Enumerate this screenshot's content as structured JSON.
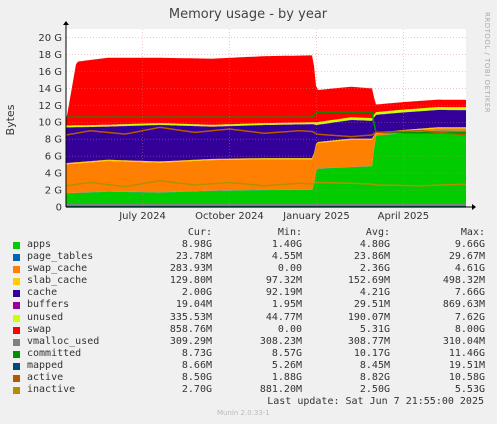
{
  "chart_data": {
    "type": "area",
    "title": "Memory usage - by year",
    "ylabel": "Bytes",
    "ylim": [
      0,
      21
    ],
    "yunit": "G",
    "yticks": [
      "0",
      "2 G",
      "4 G",
      "6 G",
      "8 G",
      "10 G",
      "12 G",
      "14 G",
      "16 G",
      "18 G",
      "20 G"
    ],
    "xticks": [
      "July 2024",
      "October 2024",
      "January 2025",
      "April 2025"
    ],
    "xtick_positions": [
      2024.5,
      2024.75,
      2025.0,
      2025.25
    ],
    "xlim": [
      2024.28,
      2025.43
    ],
    "side_label": "RRDTOOL / TOBI OETIKER",
    "series": [
      {
        "name": "apps",
        "color": "#00cc00",
        "x": [
          2024.28,
          2024.4,
          2024.55,
          2024.7,
          2024.85,
          2024.99,
          2025.0,
          2025.1,
          2025.16,
          2025.17,
          2025.25,
          2025.35,
          2025.43
        ],
        "values": [
          1.6,
          1.8,
          1.7,
          1.9,
          2.0,
          2.0,
          4.5,
          4.7,
          4.8,
          8.4,
          8.7,
          9.0,
          8.98
        ]
      },
      {
        "name": "page_tables",
        "color": "#0066b3",
        "x": [
          2024.28,
          2025.43
        ],
        "values": [
          0.03,
          0.03
        ]
      },
      {
        "name": "swap_cache",
        "color": "#ff8000",
        "x": [
          2024.28,
          2024.4,
          2024.55,
          2024.7,
          2024.85,
          2024.99,
          2025.0,
          2025.1,
          2025.16,
          2025.17,
          2025.43
        ],
        "values": [
          3.4,
          3.6,
          3.5,
          3.6,
          3.6,
          3.6,
          3.0,
          3.2,
          3.1,
          0.2,
          0.28
        ]
      },
      {
        "name": "slab_cache",
        "color": "#ffcc00",
        "x": [
          2024.28,
          2025.43
        ],
        "values": [
          0.15,
          0.13
        ]
      },
      {
        "name": "cache",
        "color": "#330099",
        "x": [
          2024.28,
          2024.4,
          2024.55,
          2024.7,
          2024.85,
          2024.99,
          2025.0,
          2025.1,
          2025.16,
          2025.17,
          2025.43
        ],
        "values": [
          4.2,
          3.9,
          4.3,
          3.8,
          3.9,
          4.0,
          2.0,
          2.2,
          2.1,
          2.1,
          2.0
        ]
      },
      {
        "name": "buffers",
        "color": "#990099",
        "x": [
          2024.28,
          2025.43
        ],
        "values": [
          0.03,
          0.02
        ]
      },
      {
        "name": "unused",
        "color": "#ccff00",
        "x": [
          2024.28,
          2024.99,
          2025.0,
          2025.16,
          2025.17,
          2025.43
        ],
        "values": [
          0.2,
          0.2,
          0.3,
          0.3,
          0.3,
          0.34
        ]
      },
      {
        "name": "swap",
        "color": "#ff0000",
        "x": [
          2024.28,
          2024.31,
          2024.4,
          2024.55,
          2024.7,
          2024.85,
          2024.99,
          2025.0,
          2025.1,
          2025.16,
          2025.17,
          2025.43
        ],
        "values": [
          0.5,
          7.5,
          7.9,
          7.7,
          7.8,
          7.9,
          7.9,
          3.8,
          3.6,
          3.5,
          0.9,
          0.86
        ]
      }
    ],
    "lines": [
      {
        "name": "vmalloc_used",
        "color": "#808080",
        "x": [
          2024.28,
          2025.43
        ],
        "values": [
          0.31,
          0.31
        ]
      },
      {
        "name": "committed",
        "color": "#008f00",
        "x": [
          2024.28,
          2024.99,
          2025.0,
          2025.16,
          2025.17,
          2025.43
        ],
        "values": [
          10.6,
          10.6,
          11.2,
          11.2,
          8.8,
          8.73
        ]
      },
      {
        "name": "mapped",
        "color": "#00487d",
        "x": [
          2024.28,
          2025.43
        ],
        "values": [
          0.009,
          0.009
        ]
      },
      {
        "name": "active",
        "color": "#b35a00",
        "x": [
          2024.28,
          2024.35,
          2024.45,
          2024.55,
          2024.65,
          2024.75,
          2024.85,
          2024.95,
          2024.99,
          2025.0,
          2025.1,
          2025.16,
          2025.17,
          2025.3,
          2025.43
        ],
        "values": [
          8.5,
          9.0,
          8.6,
          9.4,
          8.8,
          9.2,
          8.7,
          9.0,
          8.9,
          8.6,
          8.3,
          8.5,
          8.8,
          9.0,
          8.5
        ]
      },
      {
        "name": "inactive",
        "color": "#b38f00",
        "x": [
          2024.28,
          2024.35,
          2024.45,
          2024.55,
          2024.65,
          2024.75,
          2024.85,
          2024.95,
          2024.99,
          2025.0,
          2025.1,
          2025.16,
          2025.17,
          2025.3,
          2025.43
        ],
        "values": [
          2.5,
          2.9,
          2.4,
          3.1,
          2.6,
          2.9,
          2.5,
          2.8,
          2.7,
          2.9,
          2.8,
          2.7,
          2.6,
          2.5,
          2.7
        ]
      }
    ]
  },
  "legend": {
    "headers": {
      "cur": "Cur:",
      "min": "Min:",
      "avg": "Avg:",
      "max": "Max:"
    },
    "rows": [
      {
        "name": "apps",
        "color": "#00cc00",
        "cur": "8.98G",
        "min": "1.40G",
        "avg": "4.80G",
        "max": "9.66G"
      },
      {
        "name": "page_tables",
        "color": "#0066b3",
        "cur": "23.78M",
        "min": "4.55M",
        "avg": "23.86M",
        "max": "29.67M"
      },
      {
        "name": "swap_cache",
        "color": "#ff8000",
        "cur": "283.93M",
        "min": "0.00",
        "avg": "2.36G",
        "max": "4.61G"
      },
      {
        "name": "slab_cache",
        "color": "#ffcc00",
        "cur": "129.80M",
        "min": "97.32M",
        "avg": "152.69M",
        "max": "498.32M"
      },
      {
        "name": "cache",
        "color": "#330099",
        "cur": "2.00G",
        "min": "92.19M",
        "avg": "4.21G",
        "max": "7.66G"
      },
      {
        "name": "buffers",
        "color": "#990099",
        "cur": "19.04M",
        "min": "1.95M",
        "avg": "29.51M",
        "max": "869.63M"
      },
      {
        "name": "unused",
        "color": "#ccff00",
        "cur": "335.53M",
        "min": "44.77M",
        "avg": "190.07M",
        "max": "7.62G"
      },
      {
        "name": "swap",
        "color": "#ff0000",
        "cur": "858.76M",
        "min": "0.00",
        "avg": "5.31G",
        "max": "8.00G"
      },
      {
        "name": "vmalloc_used",
        "color": "#808080",
        "cur": "309.29M",
        "min": "308.23M",
        "avg": "308.77M",
        "max": "310.04M"
      },
      {
        "name": "committed",
        "color": "#008f00",
        "cur": "8.73G",
        "min": "8.57G",
        "avg": "10.17G",
        "max": "11.46G"
      },
      {
        "name": "mapped",
        "color": "#00487d",
        "cur": "8.66M",
        "min": "5.26M",
        "avg": "8.45M",
        "max": "19.51M"
      },
      {
        "name": "active",
        "color": "#b35a00",
        "cur": "8.50G",
        "min": "1.88G",
        "avg": "8.82G",
        "max": "10.58G"
      },
      {
        "name": "inactive",
        "color": "#b38f00",
        "cur": "2.70G",
        "min": "881.20M",
        "avg": "2.50G",
        "max": "5.53G"
      }
    ]
  },
  "last_update": "Last update:  Sat Jun  7 21:55:00 2025",
  "footer": "Munin 2.0.33-1"
}
